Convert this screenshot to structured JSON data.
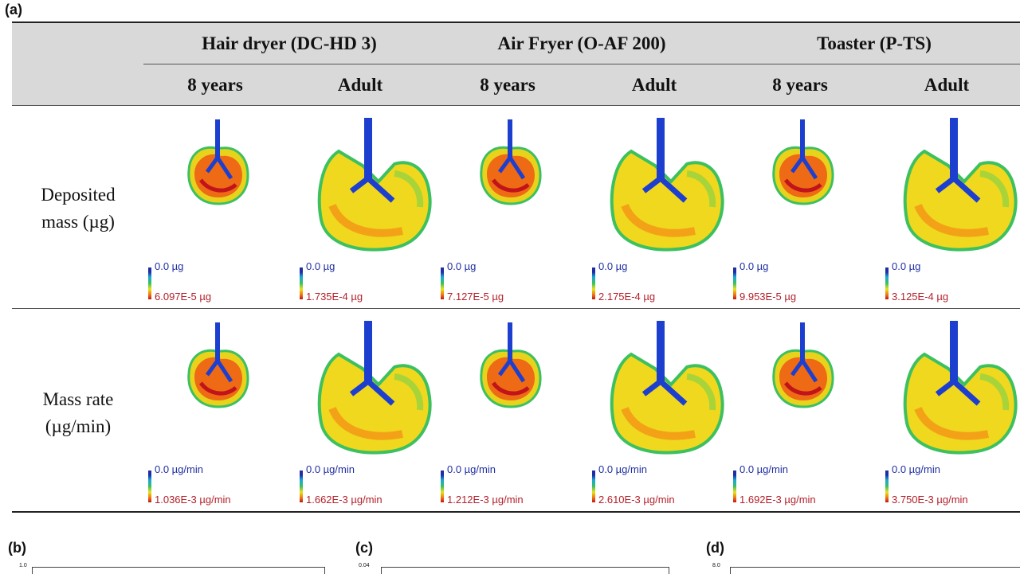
{
  "panels": {
    "a": "(a)",
    "b": "(b)",
    "c": "(c)",
    "d": "(d)"
  },
  "devices": [
    "Hair dryer (DC-HD 3)",
    "Air Fryer (O-AF 200)",
    "Toaster (P-TS)"
  ],
  "ages": [
    "8 years",
    "Adult",
    "8 years",
    "Adult",
    "8 years",
    "Adult"
  ],
  "rows": {
    "deposited": {
      "line1": "Deposited",
      "line2": "mass (µg)"
    },
    "rate": {
      "line1": "Mass rate",
      "line2": "(µg/min)"
    }
  },
  "scales": {
    "deposited": [
      {
        "min": "0.0 µg",
        "max": "6.097E-5 µg"
      },
      {
        "min": "0.0 µg",
        "max": "1.735E-4 µg"
      },
      {
        "min": "0.0 µg",
        "max": "7.127E-5 µg"
      },
      {
        "min": "0.0 µg",
        "max": "2.175E-4 µg"
      },
      {
        "min": "0.0 µg",
        "max": "9.953E-5 µg"
      },
      {
        "min": "0.0 µg",
        "max": "3.125E-4 µg"
      }
    ],
    "rate": [
      {
        "min": "0.0 µg/min",
        "max": "1.036E-3 µg/min"
      },
      {
        "min": "0.0 µg/min",
        "max": "1.662E-3 µg/min"
      },
      {
        "min": "0.0 µg/min",
        "max": "1.212E-3 µg/min"
      },
      {
        "min": "0.0 µg/min",
        "max": "2.610E-3 µg/min"
      },
      {
        "min": "0.0 µg/min",
        "max": "1.692E-3 µg/min"
      },
      {
        "min": "0.0 µg/min",
        "max": "3.750E-3 µg/min"
      }
    ]
  },
  "bottom_ticks": {
    "b": "1.0",
    "c": "0.04",
    "d": "8.0"
  },
  "colors": {
    "header_bg": "#d9d9d9",
    "scale_min": "#1f2fa3",
    "scale_max": "#b3202a",
    "airway": "#1d3fd0"
  }
}
